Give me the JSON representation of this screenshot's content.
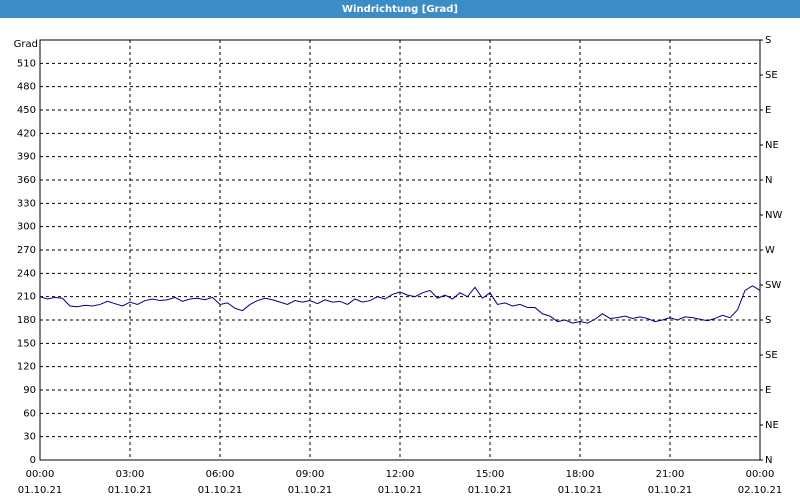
{
  "chart_data": {
    "type": "line",
    "title": "Windrichtung [Grad]",
    "ylabel": "Grad",
    "xlim": [
      0,
      24
    ],
    "xticks": [
      {
        "value": 0,
        "label": "00:00"
      },
      {
        "value": 3,
        "label": "03:00"
      },
      {
        "value": 6,
        "label": "06:00"
      },
      {
        "value": 9,
        "label": "09:00"
      },
      {
        "value": 12,
        "label": "12:00"
      },
      {
        "value": 15,
        "label": "15:00"
      },
      {
        "value": 18,
        "label": "18:00"
      },
      {
        "value": 21,
        "label": "21:00"
      },
      {
        "value": 24,
        "label": "00:00"
      }
    ],
    "xtick_dates": [
      "01.10.21",
      "01.10.21",
      "01.10.21",
      "01.10.21",
      "01.10.21",
      "01.10.21",
      "01.10.21",
      "01.10.21",
      "02.10.21"
    ],
    "ylim": [
      0,
      540
    ],
    "yticks": [
      0,
      30,
      60,
      90,
      120,
      150,
      180,
      210,
      240,
      270,
      300,
      330,
      360,
      390,
      420,
      450,
      480,
      510
    ],
    "y2lim": [
      0,
      540
    ],
    "y2ticks": [
      {
        "value": 0,
        "label": "N"
      },
      {
        "value": 45,
        "label": "NE"
      },
      {
        "value": 90,
        "label": "E"
      },
      {
        "value": 135,
        "label": "SE"
      },
      {
        "value": 180,
        "label": "S"
      },
      {
        "value": 225,
        "label": "SW"
      },
      {
        "value": 270,
        "label": "W"
      },
      {
        "value": 315,
        "label": "NW"
      },
      {
        "value": 360,
        "label": "N"
      },
      {
        "value": 405,
        "label": "NE"
      },
      {
        "value": 450,
        "label": "E"
      },
      {
        "value": 495,
        "label": "SE"
      },
      {
        "value": 540,
        "label": "S"
      }
    ],
    "grid": true,
    "x": [
      0,
      0.25,
      0.5,
      0.75,
      1,
      1.25,
      1.5,
      1.75,
      2,
      2.25,
      2.5,
      2.75,
      3,
      3.25,
      3.5,
      3.75,
      4,
      4.25,
      4.5,
      4.75,
      5,
      5.25,
      5.5,
      5.75,
      6,
      6.25,
      6.5,
      6.75,
      7,
      7.25,
      7.5,
      7.75,
      8,
      8.25,
      8.5,
      8.75,
      9,
      9.25,
      9.5,
      9.75,
      10,
      10.25,
      10.5,
      10.75,
      11,
      11.25,
      11.5,
      11.75,
      12,
      12.25,
      12.5,
      12.75,
      13,
      13.25,
      13.5,
      13.75,
      14,
      14.25,
      14.5,
      14.75,
      15,
      15.25,
      15.5,
      15.75,
      16,
      16.25,
      16.5,
      16.75,
      17,
      17.25,
      17.5,
      17.75,
      18,
      18.25,
      18.5,
      18.75,
      19,
      19.25,
      19.5,
      19.75,
      20,
      20.25,
      20.5,
      20.75,
      21,
      21.25,
      21.5,
      21.75,
      22,
      22.25,
      22.5,
      22.75,
      23,
      23.25,
      23.5,
      23.75,
      24
    ],
    "series": [
      {
        "name": "Windrichtung",
        "color": "#000080",
        "values": [
          210,
          207,
          209,
          208,
          198,
          197,
          199,
          198,
          200,
          204,
          201,
          198,
          203,
          200,
          205,
          207,
          205,
          206,
          209,
          204,
          207,
          208,
          206,
          209,
          200,
          202,
          195,
          192,
          200,
          205,
          208,
          206,
          203,
          200,
          205,
          203,
          205,
          201,
          206,
          203,
          204,
          200,
          207,
          203,
          205,
          210,
          207,
          213,
          216,
          212,
          210,
          215,
          218,
          208,
          212,
          207,
          215,
          210,
          222,
          208,
          215,
          200,
          202,
          198,
          200,
          196,
          196,
          188,
          185,
          178,
          180,
          176,
          178,
          176,
          181,
          188,
          182,
          183,
          185,
          182,
          184,
          182,
          178,
          180,
          183,
          180,
          184,
          183,
          181,
          179,
          182,
          186,
          183,
          193,
          218,
          224,
          218
        ]
      }
    ]
  }
}
